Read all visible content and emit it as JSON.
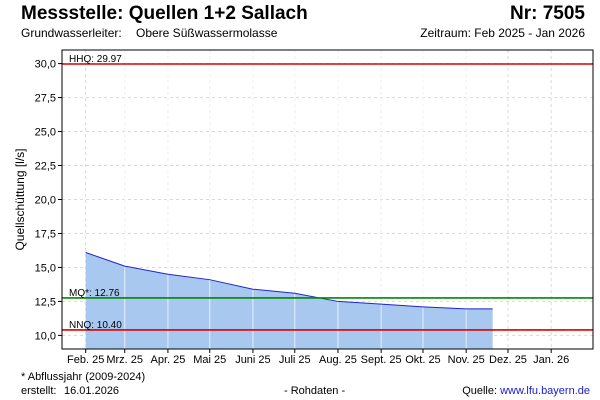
{
  "header": {
    "title": "Messstelle: Quellen 1+2 Sallach",
    "number": "Nr: 7505",
    "aquifer_label": "Grundwasserleiter:",
    "aquifer_value": "Obere Süßwassermolasse",
    "period": "Zeitraum: Feb 2025 - Jan 2026"
  },
  "footer": {
    "footnote": "* Abflussjahr (2009-2024)",
    "created_label": "erstellt:",
    "created_date": "16.01.2026",
    "raw_data": "- Rohdaten -",
    "source_label": "Quelle:",
    "source_url": "www.lfu.bayern.de"
  },
  "colors": {
    "area_fill": "#a8c8f0",
    "line": "#1f24cc",
    "hhq": "#dd0000",
    "nnq": "#dd0000",
    "mq": "#008800",
    "grid": "#d9d9d9"
  },
  "chart_data": {
    "type": "area",
    "ylabel": "Quellschüttung [l/s]",
    "xlabel": "",
    "ylim": [
      9.0,
      31.0
    ],
    "y_ticks": [
      "30,0",
      "27,5",
      "25,0",
      "22,5",
      "20,0",
      "17,5",
      "15,0",
      "12,5",
      "10,0"
    ],
    "y_tick_values": [
      30.0,
      27.5,
      25.0,
      22.5,
      20.0,
      17.5,
      15.0,
      12.5,
      10.0
    ],
    "x_ticks": [
      "Feb. 25",
      "Mrz. 25",
      "Apr. 25",
      "Mai 25",
      "Juni 25",
      "Juli 25",
      "Aug. 25",
      "Sept. 25",
      "Okt. 25",
      "Nov. 25",
      "Dez. 25",
      "Jan. 26"
    ],
    "grid": true,
    "series": [
      {
        "x": [
          "2025-02-01",
          "2025-03-01",
          "2025-04-01",
          "2025-05-01",
          "2025-06-01",
          "2025-07-01",
          "2025-08-01",
          "2025-09-01",
          "2025-10-01",
          "2025-11-01",
          "2025-11-20"
        ],
        "values": [
          16.1,
          15.1,
          14.5,
          14.1,
          13.4,
          13.1,
          12.5,
          12.3,
          12.1,
          11.95,
          11.95
        ]
      }
    ],
    "reference_lines": [
      {
        "label": "HHQ: 29.97",
        "value": 29.97,
        "color": "#dd0000"
      },
      {
        "label": "MQ*: 12.76",
        "value": 12.76,
        "color": "#008800"
      },
      {
        "label": "NNQ: 10.40",
        "value": 10.4,
        "color": "#dd0000"
      }
    ]
  }
}
